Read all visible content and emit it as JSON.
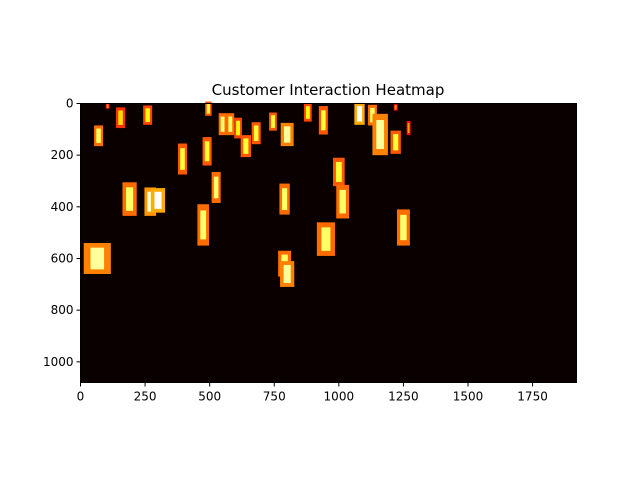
{
  "chart_data": {
    "type": "heatmap",
    "title": "Customer Interaction Heatmap",
    "xlabel": "",
    "ylabel": "",
    "xlim": [
      0,
      1920
    ],
    "ylim": [
      1080,
      0
    ],
    "xticks": [
      "0",
      "250",
      "500",
      "750",
      "1000",
      "1250",
      "1500",
      "1750"
    ],
    "yticks": [
      "0",
      "200",
      "400",
      "600",
      "800",
      "1000"
    ],
    "colormap": "hot",
    "background_color": "#0b0000",
    "grid": false,
    "hotspots": [
      {
        "x": 105,
        "y": 10,
        "w": 15,
        "h": 20,
        "intensity": 0.6
      },
      {
        "x": 155,
        "y": 55,
        "w": 35,
        "h": 80,
        "intensity": 0.7
      },
      {
        "x": 260,
        "y": 45,
        "w": 35,
        "h": 75,
        "intensity": 0.75
      },
      {
        "x": 70,
        "y": 125,
        "w": 35,
        "h": 80,
        "intensity": 0.85
      },
      {
        "x": 495,
        "y": 20,
        "w": 25,
        "h": 55,
        "intensity": 0.8
      },
      {
        "x": 550,
        "y": 80,
        "w": 30,
        "h": 85,
        "intensity": 0.85
      },
      {
        "x": 580,
        "y": 80,
        "w": 30,
        "h": 85,
        "intensity": 0.85
      },
      {
        "x": 610,
        "y": 95,
        "w": 30,
        "h": 80,
        "intensity": 0.75
      },
      {
        "x": 640,
        "y": 165,
        "w": 40,
        "h": 85,
        "intensity": 0.8
      },
      {
        "x": 680,
        "y": 115,
        "w": 35,
        "h": 85,
        "intensity": 0.8
      },
      {
        "x": 745,
        "y": 70,
        "w": 30,
        "h": 70,
        "intensity": 0.8
      },
      {
        "x": 800,
        "y": 120,
        "w": 50,
        "h": 90,
        "intensity": 0.9
      },
      {
        "x": 880,
        "y": 35,
        "w": 30,
        "h": 70,
        "intensity": 0.75
      },
      {
        "x": 940,
        "y": 65,
        "w": 35,
        "h": 110,
        "intensity": 0.8
      },
      {
        "x": 1080,
        "y": 40,
        "w": 40,
        "h": 85,
        "intensity": 1.0
      },
      {
        "x": 1130,
        "y": 45,
        "w": 35,
        "h": 80,
        "intensity": 0.85
      },
      {
        "x": 1160,
        "y": 120,
        "w": 60,
        "h": 160,
        "intensity": 0.9
      },
      {
        "x": 1220,
        "y": 150,
        "w": 40,
        "h": 90,
        "intensity": 0.8
      },
      {
        "x": 1220,
        "y": 15,
        "w": 15,
        "h": 25,
        "intensity": 0.6
      },
      {
        "x": 1270,
        "y": 95,
        "w": 15,
        "h": 55,
        "intensity": 0.6
      },
      {
        "x": 395,
        "y": 215,
        "w": 35,
        "h": 120,
        "intensity": 0.8
      },
      {
        "x": 490,
        "y": 185,
        "w": 35,
        "h": 110,
        "intensity": 0.8
      },
      {
        "x": 190,
        "y": 370,
        "w": 55,
        "h": 130,
        "intensity": 0.85
      },
      {
        "x": 270,
        "y": 380,
        "w": 45,
        "h": 110,
        "intensity": 0.95
      },
      {
        "x": 300,
        "y": 375,
        "w": 55,
        "h": 95,
        "intensity": 1.0
      },
      {
        "x": 525,
        "y": 325,
        "w": 35,
        "h": 120,
        "intensity": 0.85
      },
      {
        "x": 475,
        "y": 470,
        "w": 45,
        "h": 160,
        "intensity": 0.85
      },
      {
        "x": 790,
        "y": 370,
        "w": 40,
        "h": 120,
        "intensity": 0.85
      },
      {
        "x": 1000,
        "y": 265,
        "w": 45,
        "h": 110,
        "intensity": 0.8
      },
      {
        "x": 1015,
        "y": 380,
        "w": 50,
        "h": 130,
        "intensity": 0.85
      },
      {
        "x": 950,
        "y": 525,
        "w": 70,
        "h": 130,
        "intensity": 0.85
      },
      {
        "x": 1250,
        "y": 480,
        "w": 50,
        "h": 140,
        "intensity": 0.85
      },
      {
        "x": 65,
        "y": 600,
        "w": 105,
        "h": 120,
        "intensity": 0.9
      },
      {
        "x": 790,
        "y": 620,
        "w": 50,
        "h": 100,
        "intensity": 0.85
      },
      {
        "x": 800,
        "y": 660,
        "w": 55,
        "h": 100,
        "intensity": 0.9
      }
    ]
  }
}
